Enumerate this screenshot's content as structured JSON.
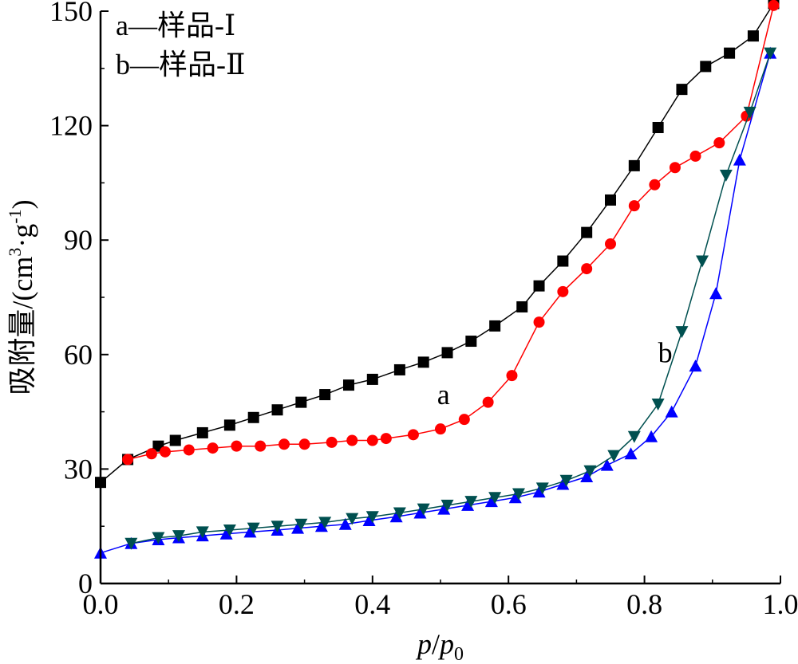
{
  "chart_data": {
    "type": "line",
    "xlabel": {
      "var": "p",
      "sep": "/",
      "sub_var": "p",
      "sub_index": "0"
    },
    "ylabel": {
      "main": "吸附量/(cm",
      "sup1": "3",
      "mid": "·g",
      "sup2": "-1",
      "end": ")"
    },
    "xlim": [
      0.0,
      1.0
    ],
    "ylim": [
      0,
      150
    ],
    "xticks": [
      0.0,
      0.2,
      0.4,
      0.6,
      0.8,
      1.0
    ],
    "xtick_labels": [
      "0.0",
      "0.2",
      "0.4",
      "0.6",
      "0.8",
      "1.0"
    ],
    "yticks": [
      0,
      30,
      60,
      90,
      120,
      150
    ],
    "ytick_labels": [
      "0",
      "30",
      "60",
      "90",
      "120",
      "150"
    ],
    "grid": false,
    "legend": {
      "placement": "top-left",
      "entries": [
        "a—样品-Ⅰ",
        "b—样品-Ⅱ"
      ]
    },
    "annotations": [
      {
        "text": "a",
        "x": 0.495,
        "y": 47
      },
      {
        "text": "b",
        "x": 0.82,
        "y": 58
      }
    ],
    "series": [
      {
        "id": "a-adsorption",
        "color": "#000000",
        "marker": "square",
        "x": [
          0.0,
          0.04,
          0.085,
          0.11,
          0.15,
          0.19,
          0.225,
          0.26,
          0.295,
          0.33,
          0.365,
          0.4,
          0.44,
          0.475,
          0.51,
          0.545,
          0.58,
          0.62,
          0.645,
          0.68,
          0.715,
          0.75,
          0.785,
          0.82,
          0.855,
          0.89,
          0.925,
          0.96,
          0.99
        ],
        "y": [
          26.5,
          32.5,
          36,
          37.5,
          39.5,
          41.5,
          43.5,
          45.5,
          47.5,
          49.5,
          52,
          53.5,
          56,
          58,
          60.5,
          63.5,
          67.5,
          72.5,
          78,
          84.5,
          92,
          100.5,
          109.5,
          119.5,
          129.5,
          135.5,
          139,
          143.5,
          152
        ]
      },
      {
        "id": "a-desorption",
        "color": "#ff0000",
        "marker": "circle",
        "x": [
          0.04,
          0.075,
          0.095,
          0.13,
          0.165,
          0.2,
          0.235,
          0.27,
          0.3,
          0.34,
          0.37,
          0.4,
          0.42,
          0.46,
          0.5,
          0.535,
          0.57,
          0.605,
          0.645,
          0.68,
          0.715,
          0.75,
          0.785,
          0.815,
          0.845,
          0.875,
          0.91,
          0.95,
          0.99
        ],
        "y": [
          32.5,
          34,
          34.5,
          35,
          35.5,
          36,
          36,
          36.5,
          36.5,
          37,
          37.5,
          37.5,
          38,
          39,
          40.5,
          43,
          47.5,
          54.5,
          68.5,
          76.5,
          82.5,
          89,
          99,
          104.5,
          109,
          112,
          115.5,
          122.5,
          151.5
        ]
      },
      {
        "id": "b-adsorption",
        "color": "#0000ff",
        "marker": "triangle-up",
        "x": [
          0.0,
          0.045,
          0.085,
          0.115,
          0.15,
          0.185,
          0.22,
          0.26,
          0.29,
          0.325,
          0.36,
          0.395,
          0.435,
          0.47,
          0.505,
          0.54,
          0.575,
          0.61,
          0.645,
          0.68,
          0.715,
          0.745,
          0.78,
          0.81,
          0.84,
          0.875,
          0.905,
          0.94,
          0.985
        ],
        "y": [
          8,
          10.5,
          11.5,
          12,
          12.5,
          13,
          13.5,
          14,
          14.5,
          15,
          15.5,
          16.5,
          17.5,
          18.5,
          19.5,
          20.5,
          21.5,
          22.5,
          24,
          26,
          28,
          31,
          34,
          38.5,
          45,
          57,
          76,
          111,
          139
        ]
      },
      {
        "id": "b-desorption",
        "color": "#005050",
        "marker": "triangle-down",
        "x": [
          0.045,
          0.085,
          0.115,
          0.15,
          0.19,
          0.225,
          0.26,
          0.295,
          0.33,
          0.37,
          0.4,
          0.44,
          0.475,
          0.51,
          0.545,
          0.58,
          0.615,
          0.65,
          0.685,
          0.72,
          0.755,
          0.785,
          0.82,
          0.855,
          0.885,
          0.92,
          0.955,
          0.985
        ],
        "y": [
          10.5,
          12,
          12.5,
          13.5,
          14,
          14.5,
          15,
          15.5,
          16,
          17,
          17.5,
          18.5,
          19.5,
          20.5,
          21.5,
          22.5,
          23.5,
          25,
          27,
          29.5,
          33.5,
          38.5,
          47,
          66,
          84.5,
          107,
          123.5,
          139
        ]
      }
    ]
  }
}
